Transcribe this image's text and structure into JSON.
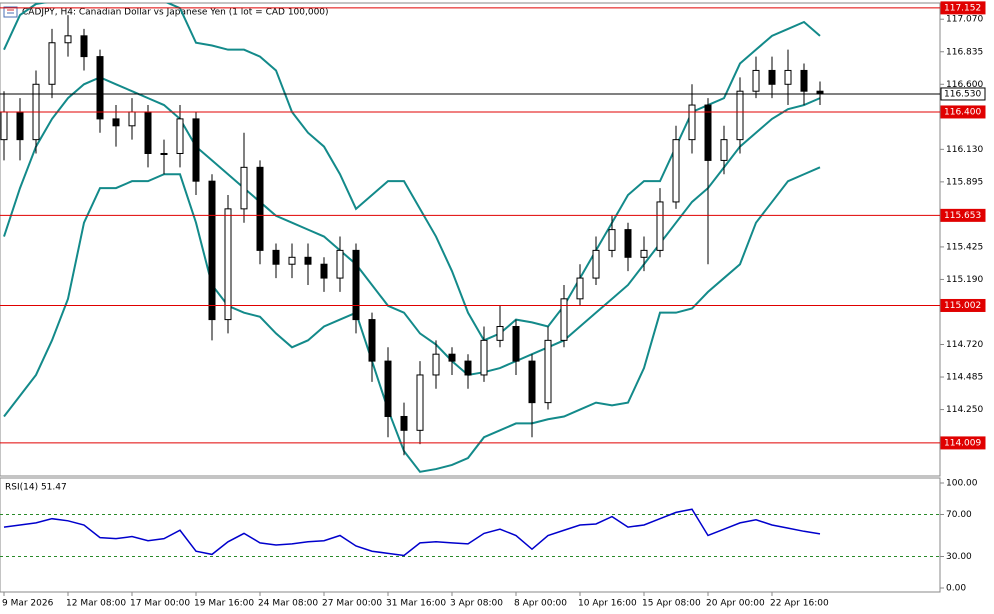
{
  "chart_data": [
    {
      "type": "candlestick",
      "title": "CADJPY, H4:  Canadian Dollar vs Japanese Yen (1 lot = CAD 100,000)",
      "open": [
        116.2,
        116.4,
        116.2,
        116.6,
        116.9,
        116.95,
        116.8,
        116.35,
        116.3,
        116.4,
        116.1,
        116.1,
        116.35,
        115.9,
        114.9,
        115.7,
        116.0,
        115.4,
        115.3,
        115.35,
        115.3,
        115.2,
        115.4,
        114.9,
        114.6,
        114.2,
        114.1,
        114.5,
        114.65,
        114.6,
        114.5,
        114.75,
        114.85,
        114.6,
        114.3,
        114.75,
        115.05,
        115.2,
        115.4,
        115.55,
        115.35,
        115.4,
        115.75,
        116.2,
        116.45,
        116.05,
        116.2,
        116.55,
        116.7,
        116.6,
        116.7,
        116.55
      ],
      "high": [
        116.55,
        116.5,
        116.7,
        117.0,
        117.1,
        117.0,
        116.85,
        116.45,
        116.5,
        116.45,
        116.2,
        116.45,
        116.4,
        115.95,
        115.8,
        116.25,
        116.05,
        115.45,
        115.45,
        115.45,
        115.35,
        115.5,
        115.45,
        114.95,
        114.7,
        114.3,
        114.6,
        114.75,
        114.7,
        114.65,
        114.85,
        115.0,
        114.9,
        114.65,
        114.85,
        115.15,
        115.3,
        115.5,
        115.65,
        115.6,
        115.5,
        115.85,
        116.3,
        116.6,
        116.5,
        116.3,
        116.65,
        116.8,
        116.8,
        116.85,
        116.75,
        116.62
      ],
      "low": [
        116.05,
        116.05,
        116.1,
        116.5,
        116.8,
        116.7,
        116.25,
        116.15,
        116.2,
        116.0,
        115.95,
        116.0,
        115.8,
        114.75,
        114.8,
        115.6,
        115.3,
        115.2,
        115.2,
        115.15,
        115.1,
        115.1,
        114.8,
        114.45,
        114.05,
        113.92,
        114.0,
        114.4,
        114.5,
        114.4,
        114.45,
        114.7,
        114.5,
        114.05,
        114.25,
        114.7,
        115.0,
        115.15,
        115.35,
        115.25,
        115.25,
        115.35,
        115.7,
        116.1,
        115.3,
        115.95,
        116.1,
        116.5,
        116.5,
        116.45,
        116.45,
        116.45
      ],
      "close": [
        116.4,
        116.2,
        116.6,
        116.9,
        116.95,
        116.8,
        116.35,
        116.3,
        116.4,
        116.1,
        116.1,
        116.35,
        115.9,
        114.9,
        115.7,
        116.0,
        115.4,
        115.3,
        115.35,
        115.3,
        115.2,
        115.4,
        114.9,
        114.6,
        114.2,
        114.1,
        114.5,
        114.65,
        114.6,
        114.5,
        114.75,
        114.85,
        114.6,
        114.3,
        114.75,
        115.05,
        115.2,
        115.4,
        115.55,
        115.35,
        115.4,
        115.75,
        116.2,
        116.45,
        116.05,
        116.2,
        116.55,
        116.7,
        116.6,
        116.7,
        116.55,
        116.53
      ],
      "series": [
        {
          "color": "#138a8a",
          "values": [
            116.85,
            117.1,
            117.18,
            117.2,
            117.22,
            117.22,
            117.22,
            117.22,
            117.2,
            117.2,
            117.2,
            117.15,
            116.9,
            116.88,
            116.85,
            116.85,
            116.8,
            116.7,
            116.4,
            116.25,
            116.15,
            115.95,
            115.7,
            115.8,
            115.9,
            115.9,
            115.7,
            115.5,
            115.25,
            114.95,
            114.75,
            114.8,
            114.9,
            114.88,
            114.85,
            115.0,
            115.2,
            115.4,
            115.6,
            115.8,
            115.9,
            115.9,
            116.15,
            116.4,
            116.45,
            116.5,
            116.75,
            116.85,
            116.95,
            117.0,
            117.05,
            116.95
          ]
        },
        {
          "color": "#138a8a",
          "values": [
            115.5,
            115.85,
            116.15,
            116.35,
            116.5,
            116.6,
            116.65,
            116.6,
            116.55,
            116.5,
            116.45,
            116.35,
            116.15,
            116.05,
            115.95,
            115.85,
            115.75,
            115.65,
            115.6,
            115.55,
            115.5,
            115.4,
            115.3,
            115.15,
            115.0,
            114.95,
            114.8,
            114.72,
            114.6,
            114.5,
            114.52,
            114.55,
            114.6,
            114.65,
            114.7,
            114.75,
            114.85,
            114.95,
            115.05,
            115.15,
            115.3,
            115.45,
            115.6,
            115.75,
            115.85,
            116.0,
            116.15,
            116.25,
            116.35,
            116.42,
            116.45,
            116.5
          ]
        },
        {
          "color": "#138a8a",
          "values": [
            114.2,
            114.35,
            114.5,
            114.75,
            115.05,
            115.6,
            115.85,
            115.85,
            115.9,
            115.9,
            115.95,
            115.95,
            115.6,
            115.15,
            115.0,
            114.95,
            114.92,
            114.8,
            114.7,
            114.75,
            114.85,
            114.9,
            114.95,
            114.6,
            114.25,
            113.95,
            113.8,
            113.82,
            113.85,
            113.9,
            114.05,
            114.1,
            114.15,
            114.15,
            114.18,
            114.2,
            114.25,
            114.3,
            114.28,
            114.3,
            114.55,
            114.95,
            114.95,
            114.98,
            115.1,
            115.2,
            115.3,
            115.6,
            115.75,
            115.9,
            115.95,
            116.0
          ]
        }
      ],
      "xticks": [
        {
          "value": 0,
          "label": "9 Mar 2026"
        },
        {
          "value": 4,
          "label": "12 Mar 08:00"
        },
        {
          "value": 8,
          "label": "17 Mar 00:00"
        },
        {
          "value": 12,
          "label": "19 Mar 16:00"
        },
        {
          "value": 16,
          "label": "24 Mar 08:00"
        },
        {
          "value": 20,
          "label": "27 Mar 00:00"
        },
        {
          "value": 24,
          "label": "31 Mar 16:00"
        },
        {
          "value": 28,
          "label": "3 Apr 08:00"
        },
        {
          "value": 32,
          "label": "8 Apr 00:00"
        },
        {
          "value": 36,
          "label": "10 Apr 16:00"
        },
        {
          "value": 40,
          "label": "15 Apr 08:00"
        },
        {
          "value": 44,
          "label": "20 Apr 00:00"
        },
        {
          "value": 48,
          "label": "22 Apr 16:00"
        }
      ],
      "ylim": [
        113.77,
        117.18
      ],
      "yticks": [
        {
          "value": 117.07,
          "label": "117.070"
        },
        {
          "value": 116.835,
          "label": "116.835"
        },
        {
          "value": 116.6,
          "label": "116.600"
        },
        {
          "value": 116.13,
          "label": "116.130"
        },
        {
          "value": 115.895,
          "label": "115.895"
        },
        {
          "value": 115.425,
          "label": "115.425"
        },
        {
          "value": 115.19,
          "label": "115.190"
        },
        {
          "value": 114.72,
          "label": "114.720"
        },
        {
          "value": 114.485,
          "label": "114.485"
        },
        {
          "value": 114.25,
          "label": "114.250"
        }
      ],
      "levels": [
        {
          "value": 117.152,
          "label": "117.152",
          "color": "#e00000"
        },
        {
          "value": 116.4,
          "label": "116.400",
          "color": "#e00000"
        },
        {
          "value": 115.653,
          "label": "115.653",
          "color": "#e00000"
        },
        {
          "value": 115.002,
          "label": "115.002",
          "color": "#e00000"
        },
        {
          "value": 114.009,
          "label": "114.009",
          "color": "#e00000"
        },
        {
          "value": 116.53,
          "label": "116.530",
          "color": "#000000"
        }
      ]
    },
    {
      "type": "line",
      "title": "RSI(14) 51.47",
      "color": "#0000cc",
      "values": [
        58,
        60,
        62,
        66,
        64,
        60,
        48,
        47,
        49,
        45,
        47,
        55,
        35,
        32,
        44,
        52,
        43,
        41,
        42,
        44,
        45,
        50,
        40,
        35,
        33,
        31,
        43,
        44,
        43,
        42,
        52,
        56,
        50,
        37,
        50,
        55,
        60,
        61,
        68,
        58,
        60,
        66,
        72,
        75,
        50,
        56,
        62,
        65,
        60,
        57,
        54,
        51.5
      ],
      "ylim": [
        0,
        100
      ],
      "yticks": [
        {
          "value": 100,
          "label": "100.00"
        },
        {
          "value": 70,
          "label": "70.00"
        },
        {
          "value": 30,
          "label": "30.00"
        },
        {
          "value": 0,
          "label": "0.00"
        }
      ],
      "levels": [
        70,
        30
      ]
    }
  ]
}
